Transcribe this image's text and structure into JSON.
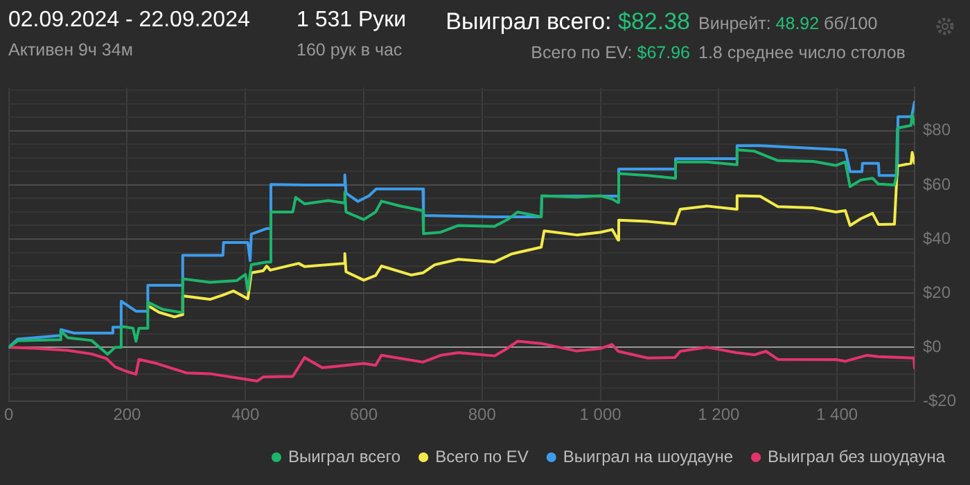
{
  "chart_data": {
    "type": "line",
    "title": "02.09.2024 - 22.09.2024",
    "subtitle": "Активен 9ч 34м",
    "annotations": [
      "1 531 Руки",
      "160 рук в час",
      "Выиграл всего:",
      "$82.38",
      "Всего по EV:",
      "$67.96",
      "Винрейт:",
      "48.92",
      "бб/100",
      "1.8 среднее число столов"
    ],
    "xlim": [
      0,
      1531
    ],
    "xticks": [
      0,
      200,
      400,
      600,
      800,
      {
        "value": 1000,
        "label": "1 000"
      },
      {
        "value": 1200,
        "label": "1 200"
      },
      {
        "value": 1400,
        "label": "1 400"
      }
    ],
    "ylim": [
      -20,
      96
    ],
    "yticks": [
      {
        "value": -20,
        "label": "-$20"
      },
      {
        "value": -15,
        "label": null
      },
      {
        "value": -10,
        "label": null
      },
      {
        "value": -5,
        "label": null
      },
      {
        "value": 0,
        "label": "$0"
      },
      {
        "value": 5,
        "label": null
      },
      {
        "value": 10,
        "label": null
      },
      {
        "value": 15,
        "label": null
      },
      {
        "value": 20,
        "label": "$20"
      },
      {
        "value": 25,
        "label": null
      },
      {
        "value": 30,
        "label": null
      },
      {
        "value": 35,
        "label": null
      },
      {
        "value": 40,
        "label": "$40"
      },
      {
        "value": 45,
        "label": null
      },
      {
        "value": 50,
        "label": null
      },
      {
        "value": 55,
        "label": null
      },
      {
        "value": 60,
        "label": "$60"
      },
      {
        "value": 65,
        "label": null
      },
      {
        "value": 70,
        "label": null
      },
      {
        "value": 75,
        "label": null
      },
      {
        "value": 80,
        "label": "$80"
      },
      {
        "value": 85,
        "label": null
      },
      {
        "value": 90,
        "label": null
      },
      {
        "value": 95,
        "label": null
      }
    ],
    "grid": true,
    "legend": "bottom",
    "marker": "none",
    "line_style": "solid",
    "series": [
      {
        "name": "Выиграл всего",
        "color": "#1db56c",
        "x": [
          0,
          15,
          87,
          88,
          100,
          140,
          167,
          180,
          189,
          190,
          210,
          215,
          220,
          234,
          235,
          260,
          290,
          293,
          294,
          340,
          385,
          400,
          404,
          410,
          436,
          442,
          443,
          480,
          485,
          500,
          540,
          567,
          568,
          570,
          600,
          620,
          630,
          660,
          700,
          701,
          730,
          760,
          821,
          844,
          860,
          900,
          901,
          960,
          1000,
          1020,
          1030,
          1031,
          1080,
          1126,
          1127,
          1180,
          1230,
          1231,
          1260,
          1300,
          1360,
          1398,
          1414,
          1422,
          1440,
          1460,
          1470,
          1497,
          1500,
          1502,
          1525,
          1527,
          1531
        ],
        "values": [
          0,
          2.4,
          2.8,
          6,
          3.5,
          2.5,
          -2.6,
          0,
          0,
          7.7,
          7,
          2.2,
          7,
          7,
          16.7,
          14,
          12.9,
          13,
          25.3,
          24,
          24.6,
          26.9,
          21,
          30.5,
          31.5,
          31.5,
          50,
          50,
          55.4,
          53,
          54.2,
          53.3,
          57.3,
          50,
          47.2,
          50,
          54,
          52.3,
          50.5,
          42,
          42.5,
          45,
          44.7,
          47.3,
          50,
          48.2,
          56,
          55.5,
          56,
          54.8,
          53.5,
          64.2,
          63.5,
          62.5,
          68.5,
          68.5,
          67.5,
          73,
          72.5,
          69,
          68.7,
          67.2,
          68.5,
          59.4,
          61.8,
          62.5,
          60.3,
          60,
          63,
          81,
          82,
          86,
          82.4
        ]
      },
      {
        "name": "Всего по EV",
        "color": "#f2ea4a",
        "x": [
          238,
          254,
          280,
          293,
          294,
          340,
          362,
          380,
          404,
          410,
          430,
          436,
          442,
          490,
          500,
          567,
          568,
          570,
          600,
          620,
          630,
          680,
          700,
          720,
          760,
          821,
          850,
          900,
          905,
          960,
          1000,
          1020,
          1030,
          1031,
          1080,
          1126,
          1135,
          1180,
          1230,
          1231,
          1270,
          1300,
          1360,
          1398,
          1414,
          1422,
          1440,
          1460,
          1470,
          1497,
          1502,
          1525,
          1527,
          1531
        ],
        "values": [
          15,
          12.9,
          11.2,
          12,
          19,
          17.7,
          19.3,
          20.8,
          17.9,
          27.5,
          28.3,
          30,
          28.5,
          31,
          29.8,
          31,
          34.6,
          27.9,
          24.8,
          26.5,
          30,
          26.7,
          27.5,
          30.5,
          32.5,
          31.5,
          34.5,
          37,
          43,
          41.5,
          42.5,
          43.5,
          39.6,
          47,
          46.5,
          45.6,
          51,
          52.2,
          51,
          56,
          55.8,
          52,
          51.5,
          50,
          50.5,
          45,
          47.5,
          49.5,
          45.4,
          45.5,
          67,
          68,
          72,
          68
        ]
      },
      {
        "name": "Выиграл на шоудауне",
        "color": "#3d9cea",
        "x": [
          0,
          15,
          87,
          88,
          111,
          175,
          176,
          189,
          190,
          215,
          234,
          235,
          293,
          294,
          362,
          363,
          404,
          408,
          410,
          436,
          442,
          443,
          502,
          567,
          568,
          570,
          590,
          609,
          621,
          700,
          701,
          821,
          900,
          901,
          1030,
          1031,
          1126,
          1127,
          1230,
          1231,
          1270,
          1398,
          1414,
          1422,
          1442,
          1443,
          1470,
          1471,
          1502,
          1503,
          1526,
          1531
        ],
        "values": [
          0,
          3,
          4.3,
          6.5,
          5.2,
          5.2,
          7.4,
          7.4,
          17,
          13.3,
          13.3,
          22.9,
          22.9,
          34,
          34,
          38.7,
          38.7,
          32,
          41.8,
          43.9,
          43.9,
          60.2,
          60,
          60,
          63.7,
          57,
          53.9,
          56,
          58.5,
          58.5,
          48.7,
          48.2,
          48.2,
          55.9,
          55.9,
          65.9,
          65.9,
          69.7,
          69.7,
          74.5,
          74.5,
          73.1,
          72.8,
          64.9,
          64.9,
          68,
          68,
          63.5,
          63.5,
          85.2,
          85.2,
          90.7
        ]
      },
      {
        "name": "Выиграл без шоудауна",
        "color": "#e2346c",
        "x": [
          0,
          50,
          100,
          140,
          165,
          180,
          200,
          215,
          220,
          250,
          300,
          340,
          390,
          420,
          430,
          480,
          500,
          530,
          600,
          620,
          630,
          700,
          730,
          760,
          821,
          840,
          860,
          900,
          960,
          1000,
          1020,
          1030,
          1080,
          1126,
          1135,
          1180,
          1230,
          1260,
          1280,
          1300,
          1398,
          1414,
          1450,
          1470,
          1530,
          1531
        ],
        "values": [
          0,
          -0.5,
          -1.2,
          -2.5,
          -4.2,
          -7.3,
          -9,
          -10,
          -4.5,
          -6,
          -9.5,
          -9.8,
          -11.5,
          -12.5,
          -11,
          -10.8,
          -3.8,
          -7.6,
          -6,
          -6.7,
          -3,
          -5.5,
          -3,
          -2,
          -3.2,
          -0.8,
          2.2,
          1.4,
          -1.4,
          -0.5,
          1,
          -1.5,
          -4,
          -3.8,
          -1.5,
          0,
          -2,
          -2.8,
          -1.5,
          -4.5,
          -4.6,
          -5.2,
          -3,
          -3.5,
          -4,
          -7.7
        ]
      }
    ]
  }
}
